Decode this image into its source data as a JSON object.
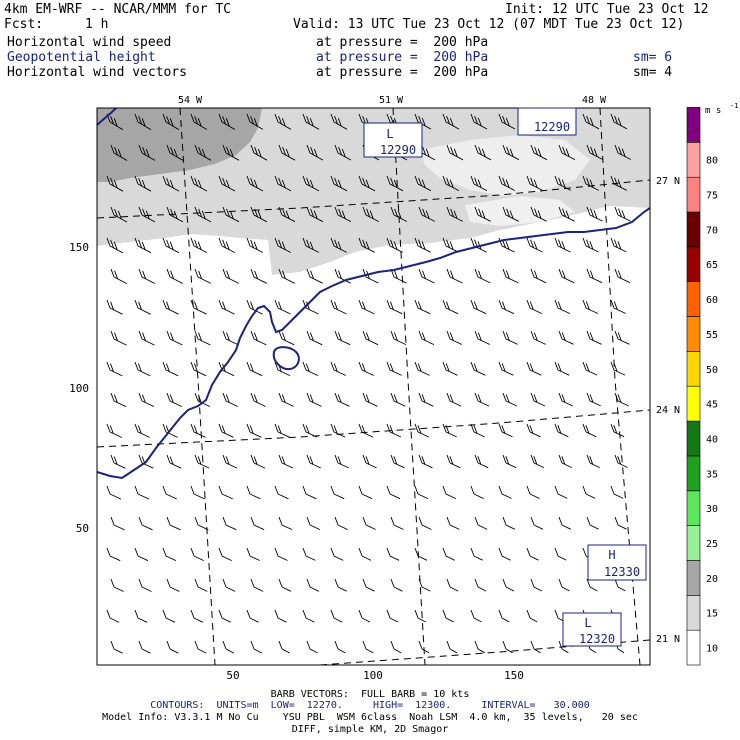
{
  "header": {
    "model": "4km EM-WRF -- NCAR/MMM for TC",
    "init": "Init: 12 UTC Tue 23 Oct 12",
    "fcst_label": "Fcst:",
    "fcst_value": "1 h",
    "valid": "Valid: 13 UTC Tue 23 Oct 12 (07 MDT Tue 23 Oct 12)"
  },
  "fields": [
    {
      "name": "Horizontal wind speed",
      "pressure": "at pressure =  200 hPa",
      "sm": ""
    },
    {
      "name": "Geopotential height",
      "pressure": "at pressure =  200 hPa",
      "sm": "sm= 6"
    },
    {
      "name": "Horizontal wind vectors",
      "pressure": "at pressure =  200 hPa",
      "sm": "sm= 4"
    }
  ],
  "colors": {
    "height_contour": "#1a237e",
    "shade_15": "#d9d9d9",
    "shade_20": "#a6a6a6",
    "barb": "#000000",
    "gridline": "#000000"
  },
  "chart_data": {
    "type": "heatmap",
    "title": "Horizontal wind speed / Geopotential height / Horizontal wind vectors at 200 hPa",
    "x_ticks": [
      50,
      100,
      150
    ],
    "y_ticks": [
      50,
      100,
      150
    ],
    "lon_labels": [
      "54 W",
      "51 W",
      "48 W"
    ],
    "lat_labels": [
      "27 N",
      "24 N",
      "21 N"
    ],
    "speed_units": "m s",
    "speed_units_exp": "-1",
    "colorbar": [
      {
        "label": "10",
        "color": "#ffffff"
      },
      {
        "label": "15",
        "color": "#d9d9d9"
      },
      {
        "label": "20",
        "color": "#a6a6a6"
      },
      {
        "label": "25",
        "color": "#98f098"
      },
      {
        "label": "30",
        "color": "#5ce65c"
      },
      {
        "label": "35",
        "color": "#1fa01f"
      },
      {
        "label": "40",
        "color": "#147814"
      },
      {
        "label": "45",
        "color": "#ffff00"
      },
      {
        "label": "50",
        "color": "#ffd700"
      },
      {
        "label": "55",
        "color": "#ff8c00"
      },
      {
        "label": "60",
        "color": "#ff6000"
      },
      {
        "label": "65",
        "color": "#990000"
      },
      {
        "label": "70",
        "color": "#6b0000"
      },
      {
        "label": "75",
        "color": "#ff8080"
      },
      {
        "label": "80",
        "color": "#ffa0a0"
      },
      {
        "label": "",
        "color": "#800080"
      }
    ],
    "contour_interval_m": 30,
    "contour_low_m": 12270,
    "contour_high_m": 12300,
    "centers": [
      {
        "type": "L",
        "value": "12290",
        "show_letter": true
      },
      {
        "type": "L",
        "value": "12290",
        "show_letter": false
      },
      {
        "type": "H",
        "value": "12330",
        "show_letter": true
      },
      {
        "type": "L",
        "value": "12320",
        "show_letter": true
      }
    ]
  },
  "footer": {
    "barb_vectors": "BARB VECTORS:  FULL BARB = 10 kts",
    "contours": "CONTOURS:  UNITS=m  LOW=  12270.     HIGH=  12300.     INTERVAL=   30.000",
    "model_info": "Model Info: V3.3.1 M No Cu    YSU PBL  WSM 6class  Noah LSM  4.0 km,  35 levels,   20 sec",
    "diff": "DIFF, simple KM, 2D Smagor"
  }
}
